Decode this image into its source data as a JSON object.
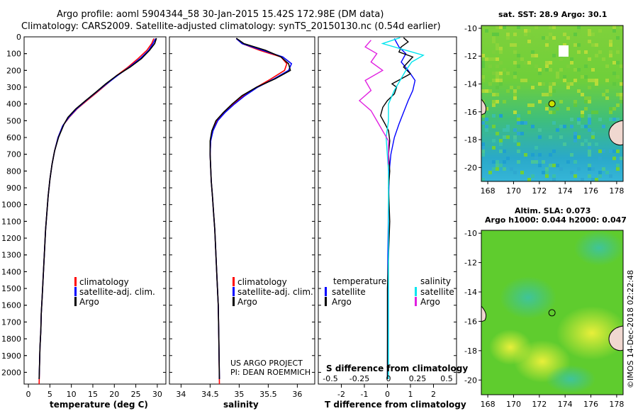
{
  "header": {
    "title_line1": "Argo profile: aoml 5904344_58 30-Jan-2015 15.42S 172.98E (DM data)",
    "title_line2": "Climatology: CARS2009. Satellite-adjusted climatology: synTS_20150130.nc (0.54d earlier)"
  },
  "credit": {
    "line1": "US ARGO PROJECT",
    "line2": "PI: DEAN ROEMMICH"
  },
  "side_label": "©IMOS 14-Dec-2018 02:22:48",
  "colors": {
    "climatology": "#ff0000",
    "satellite": "#0000ff",
    "argo": "#000000",
    "sal_satellite": "#00e5ee",
    "sal_argo": "#e020e0"
  },
  "chart_data": [
    {
      "type": "line",
      "id": "temperature",
      "xlabel": "temperature (deg C)",
      "xlim": [
        -1,
        32
      ],
      "xticks": [
        0,
        5,
        10,
        15,
        20,
        25,
        30
      ],
      "ylim": [
        2070,
        0
      ],
      "yticks": [
        0,
        100,
        200,
        300,
        400,
        500,
        600,
        700,
        800,
        900,
        1000,
        1100,
        1200,
        1300,
        1400,
        1500,
        1600,
        1700,
        1800,
        1900,
        2000
      ],
      "legend": [
        "climatology",
        "satellite-adj. clim.",
        "Argo"
      ],
      "series": [
        {
          "name": "climatology",
          "color": "#ff0000",
          "points": [
            [
              29.2,
              10
            ],
            [
              28.7,
              40
            ],
            [
              27.6,
              80
            ],
            [
              25.5,
              130
            ],
            [
              23.2,
              180
            ],
            [
              20.6,
              230
            ],
            [
              18.3,
              280
            ],
            [
              16.0,
              330
            ],
            [
              13.6,
              380
            ],
            [
              11.3,
              430
            ],
            [
              9.5,
              480
            ],
            [
              8.0,
              530
            ],
            [
              6.9,
              600
            ],
            [
              6.1,
              680
            ],
            [
              5.5,
              760
            ],
            [
              5.0,
              850
            ],
            [
              4.6,
              950
            ],
            [
              4.3,
              1050
            ],
            [
              4.0,
              1150
            ],
            [
              3.8,
              1250
            ],
            [
              3.6,
              1350
            ],
            [
              3.4,
              1450
            ],
            [
              3.2,
              1550
            ],
            [
              3.0,
              1650
            ],
            [
              2.9,
              1750
            ],
            [
              2.7,
              1850
            ],
            [
              2.6,
              1950
            ],
            [
              2.5,
              2070
            ]
          ]
        },
        {
          "name": "satellite-adj. clim.",
          "color": "#0000ff",
          "points": [
            [
              29.6,
              10
            ],
            [
              29.0,
              40
            ],
            [
              28.0,
              80
            ],
            [
              26.0,
              130
            ],
            [
              23.5,
              180
            ],
            [
              20.8,
              230
            ],
            [
              18.2,
              280
            ],
            [
              15.8,
              330
            ],
            [
              13.4,
              380
            ],
            [
              11.2,
              430
            ],
            [
              9.4,
              480
            ],
            [
              8.0,
              530
            ],
            [
              6.9,
              600
            ],
            [
              6.1,
              680
            ],
            [
              5.5,
              760
            ],
            [
              5.0,
              850
            ],
            [
              4.6,
              950
            ],
            [
              4.3,
              1050
            ],
            [
              4.0,
              1150
            ],
            [
              3.8,
              1250
            ],
            [
              3.6,
              1350
            ],
            [
              3.4,
              1450
            ],
            [
              3.2,
              1550
            ],
            [
              3.0,
              1650
            ],
            [
              2.9,
              1750
            ],
            [
              2.7,
              1850
            ],
            [
              2.6,
              1950
            ],
            [
              2.5,
              2040
            ]
          ]
        },
        {
          "name": "Argo",
          "color": "#000000",
          "points": [
            [
              29.8,
              8
            ],
            [
              29.4,
              40
            ],
            [
              28.2,
              80
            ],
            [
              26.3,
              130
            ],
            [
              23.7,
              180
            ],
            [
              20.6,
              230
            ],
            [
              18.0,
              280
            ],
            [
              15.7,
              330
            ],
            [
              13.3,
              380
            ],
            [
              11.0,
              430
            ],
            [
              9.2,
              480
            ],
            [
              8.3,
              520
            ],
            [
              7.0,
              600
            ],
            [
              6.1,
              680
            ],
            [
              5.5,
              760
            ],
            [
              5.0,
              850
            ],
            [
              4.6,
              950
            ],
            [
              4.3,
              1050
            ],
            [
              4.0,
              1150
            ],
            [
              3.8,
              1250
            ],
            [
              3.6,
              1350
            ],
            [
              3.4,
              1450
            ],
            [
              3.2,
              1550
            ],
            [
              3.0,
              1650
            ],
            [
              2.9,
              1750
            ],
            [
              2.7,
              1850
            ],
            [
              2.6,
              1950
            ],
            [
              2.5,
              2040
            ]
          ]
        }
      ]
    },
    {
      "type": "line",
      "id": "salinity",
      "xlabel": "salinity",
      "xlim": [
        33.8,
        36.3
      ],
      "xticks": [
        34,
        34.5,
        35,
        35.5,
        36
      ],
      "ylim": [
        2070,
        0
      ],
      "legend": [
        "climatology",
        "satellite-adj. clim.",
        "Argo"
      ],
      "series": [
        {
          "name": "climatology",
          "color": "#ff0000",
          "points": [
            [
              34.95,
              10
            ],
            [
              35.05,
              40
            ],
            [
              35.35,
              80
            ],
            [
              35.72,
              120
            ],
            [
              35.82,
              160
            ],
            [
              35.78,
              200
            ],
            [
              35.55,
              250
            ],
            [
              35.3,
              300
            ],
            [
              35.08,
              350
            ],
            [
              34.9,
              400
            ],
            [
              34.75,
              450
            ],
            [
              34.62,
              500
            ],
            [
              34.54,
              560
            ],
            [
              34.51,
              620
            ],
            [
              34.5,
              700
            ],
            [
              34.51,
              780
            ],
            [
              34.52,
              860
            ],
            [
              34.54,
              950
            ],
            [
              34.56,
              1050
            ],
            [
              34.58,
              1150
            ],
            [
              34.6,
              1300
            ],
            [
              34.62,
              1450
            ],
            [
              34.64,
              1600
            ],
            [
              34.65,
              1800
            ],
            [
              34.66,
              2070
            ]
          ]
        },
        {
          "name": "satellite-adj. clim.",
          "color": "#0000ff",
          "points": [
            [
              34.95,
              10
            ],
            [
              35.05,
              40
            ],
            [
              35.4,
              80
            ],
            [
              35.75,
              120
            ],
            [
              35.9,
              160
            ],
            [
              35.85,
              200
            ],
            [
              35.6,
              250
            ],
            [
              35.32,
              300
            ],
            [
              35.1,
              350
            ],
            [
              34.92,
              400
            ],
            [
              34.76,
              450
            ],
            [
              34.63,
              500
            ],
            [
              34.55,
              560
            ],
            [
              34.51,
              620
            ],
            [
              34.5,
              700
            ],
            [
              34.51,
              780
            ],
            [
              34.52,
              860
            ],
            [
              34.54,
              950
            ],
            [
              34.56,
              1050
            ],
            [
              34.58,
              1150
            ],
            [
              34.6,
              1300
            ],
            [
              34.62,
              1450
            ],
            [
              34.64,
              1600
            ],
            [
              34.65,
              1800
            ],
            [
              34.66,
              2040
            ]
          ]
        },
        {
          "name": "Argo",
          "color": "#000000",
          "points": [
            [
              34.95,
              8
            ],
            [
              35.08,
              40
            ],
            [
              35.45,
              80
            ],
            [
              35.72,
              120
            ],
            [
              35.85,
              160
            ],
            [
              35.88,
              200
            ],
            [
              35.62,
              250
            ],
            [
              35.3,
              300
            ],
            [
              35.05,
              350
            ],
            [
              34.88,
              400
            ],
            [
              34.73,
              450
            ],
            [
              34.6,
              500
            ],
            [
              34.53,
              560
            ],
            [
              34.5,
              620
            ],
            [
              34.5,
              700
            ],
            [
              34.51,
              780
            ],
            [
              34.52,
              860
            ],
            [
              34.54,
              950
            ],
            [
              34.56,
              1050
            ],
            [
              34.58,
              1150
            ],
            [
              34.6,
              1300
            ],
            [
              34.62,
              1450
            ],
            [
              34.64,
              1600
            ],
            [
              34.65,
              1800
            ],
            [
              34.66,
              2040
            ]
          ]
        }
      ]
    },
    {
      "type": "line",
      "id": "difference",
      "xlabel": "T difference from climatology",
      "xlim": [
        -3,
        3
      ],
      "xticks": [
        -2,
        -1,
        0,
        1,
        2
      ],
      "ylim": [
        2070,
        0
      ],
      "s_axis": {
        "label": "S difference from climatology",
        "ticks": [
          "-0.5",
          "-0.25",
          "0",
          "0.25",
          "0.5"
        ]
      },
      "legend_temperature": {
        "title": "temperature",
        "items": [
          "satellite",
          "Argo"
        ]
      },
      "legend_salinity": {
        "title": "salinity",
        "items": [
          "satellite",
          "Argo"
        ]
      },
      "series": [
        {
          "name": "T satellite",
          "color": "#0000ff",
          "points": [
            [
              0.3,
              10
            ],
            [
              0.5,
              60
            ],
            [
              0.8,
              100
            ],
            [
              0.6,
              150
            ],
            [
              0.9,
              200
            ],
            [
              1.2,
              260
            ],
            [
              1.1,
              320
            ],
            [
              0.9,
              380
            ],
            [
              0.7,
              450
            ],
            [
              0.5,
              520
            ],
            [
              0.3,
              600
            ],
            [
              0.15,
              700
            ],
            [
              0.08,
              800
            ],
            [
              0.05,
              1000
            ],
            [
              0.02,
              1300
            ],
            [
              0,
              2040
            ]
          ]
        },
        {
          "name": "T Argo",
          "color": "#000000",
          "points": [
            [
              0.7,
              5
            ],
            [
              0.9,
              30
            ],
            [
              0.6,
              60
            ],
            [
              0.5,
              90
            ],
            [
              1.1,
              120
            ],
            [
              0.9,
              150
            ],
            [
              0.7,
              180
            ],
            [
              1.0,
              220
            ],
            [
              0.6,
              250
            ],
            [
              0.2,
              280
            ],
            [
              0.4,
              300
            ],
            [
              0.3,
              340
            ],
            [
              0.0,
              380
            ],
            [
              -0.2,
              420
            ],
            [
              -0.3,
              470
            ],
            [
              -0.1,
              520
            ],
            [
              0.05,
              560
            ],
            [
              0.1,
              620
            ],
            [
              0.05,
              700
            ],
            [
              0.1,
              800
            ],
            [
              0.05,
              900
            ],
            [
              0.1,
              1100
            ],
            [
              0.05,
              1300
            ],
            [
              0,
              1500
            ],
            [
              0,
              2040
            ]
          ]
        },
        {
          "name": "S satellite",
          "color": "#00e5ee",
          "points": [
            [
              0.1,
              5
            ],
            [
              -0.05,
              40
            ],
            [
              0.15,
              80
            ],
            [
              0.3,
              110
            ],
            [
              0.2,
              150
            ],
            [
              0.15,
              200
            ],
            [
              0.1,
              260
            ],
            [
              0.05,
              320
            ],
            [
              0.0,
              400
            ],
            [
              0.0,
              500
            ],
            [
              -0.02,
              600
            ],
            [
              0,
              800
            ],
            [
              0,
              1000
            ],
            [
              0,
              1400
            ],
            [
              0,
              2040
            ]
          ]
        },
        {
          "name": "S Argo",
          "color": "#e020e0",
          "points": [
            [
              -0.15,
              20
            ],
            [
              -0.2,
              60
            ],
            [
              -0.1,
              100
            ],
            [
              -0.15,
              150
            ],
            [
              -0.05,
              200
            ],
            [
              -0.2,
              260
            ],
            [
              -0.15,
              320
            ],
            [
              -0.25,
              380
            ],
            [
              -0.15,
              440
            ],
            [
              -0.1,
              500
            ],
            [
              -0.05,
              560
            ],
            [
              0,
              620
            ],
            [
              0,
              700
            ],
            [
              0,
              760
            ]
          ]
        }
      ]
    },
    {
      "type": "heatmap",
      "id": "sst_map",
      "title": "sat. SST: 28.9 Argo: 30.1",
      "xlim": [
        167.5,
        178.5
      ],
      "ylim": [
        -21,
        -9.8
      ],
      "xticks": [
        168,
        170,
        172,
        174,
        176,
        178
      ],
      "yticks": [
        -10,
        -12,
        -14,
        -16,
        -18,
        -20
      ],
      "marker": [
        172.98,
        -15.42
      ]
    },
    {
      "type": "heatmap",
      "id": "sla_map",
      "title_line1": "Altim. SLA: 0.073",
      "title_line2": "Argo h1000: 0.044 h2000: 0.047",
      "xlim": [
        167.5,
        178.5
      ],
      "ylim": [
        -21,
        -9.8
      ],
      "xticks": [
        168,
        170,
        172,
        174,
        176,
        178
      ],
      "yticks": [
        -10,
        -12,
        -14,
        -16,
        -18,
        -20
      ],
      "marker": [
        172.98,
        -15.42
      ]
    }
  ]
}
